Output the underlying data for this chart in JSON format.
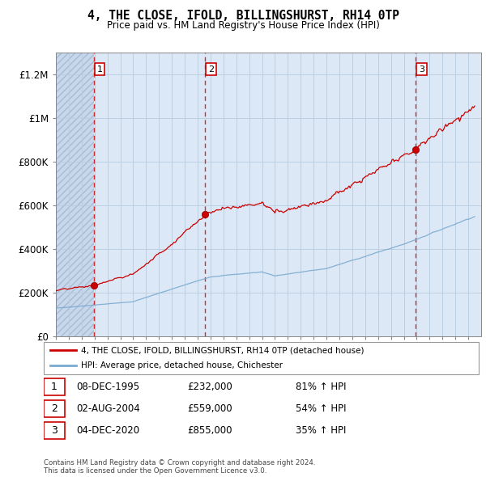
{
  "title": "4, THE CLOSE, IFOLD, BILLINGSHURST, RH14 0TP",
  "subtitle": "Price paid vs. HM Land Registry's House Price Index (HPI)",
  "xlim": [
    1993,
    2026
  ],
  "ylim": [
    0,
    1300000
  ],
  "yticks": [
    0,
    200000,
    400000,
    600000,
    800000,
    1000000,
    1200000
  ],
  "ytick_labels": [
    "£0",
    "£200K",
    "£400K",
    "£600K",
    "£800K",
    "£1M",
    "£1.2M"
  ],
  "xticks": [
    1993,
    1994,
    1995,
    1996,
    1997,
    1998,
    1999,
    2000,
    2001,
    2002,
    2003,
    2004,
    2005,
    2006,
    2007,
    2008,
    2009,
    2010,
    2011,
    2012,
    2013,
    2014,
    2015,
    2016,
    2017,
    2018,
    2019,
    2020,
    2021,
    2022,
    2023,
    2024,
    2025
  ],
  "sale_dates": [
    1995.93,
    2004.58,
    2020.92
  ],
  "sale_prices": [
    232000,
    559000,
    855000
  ],
  "sale_labels": [
    "1",
    "2",
    "3"
  ],
  "legend_house": "4, THE CLOSE, IFOLD, BILLINGSHURST, RH14 0TP (detached house)",
  "legend_hpi": "HPI: Average price, detached house, Chichester",
  "table_rows": [
    [
      "1",
      "08-DEC-1995",
      "£232,000",
      "81% ↑ HPI"
    ],
    [
      "2",
      "02-AUG-2004",
      "£559,000",
      "54% ↑ HPI"
    ],
    [
      "3",
      "04-DEC-2020",
      "£855,000",
      "35% ↑ HPI"
    ]
  ],
  "footnote": "Contains HM Land Registry data © Crown copyright and database right 2024.\nThis data is licensed under the Open Government Licence v3.0.",
  "house_color": "#cc0000",
  "hpi_color": "#7aaad0",
  "bg_color": "#ddeeff",
  "hatch_bg_color": "#ccd8ea"
}
